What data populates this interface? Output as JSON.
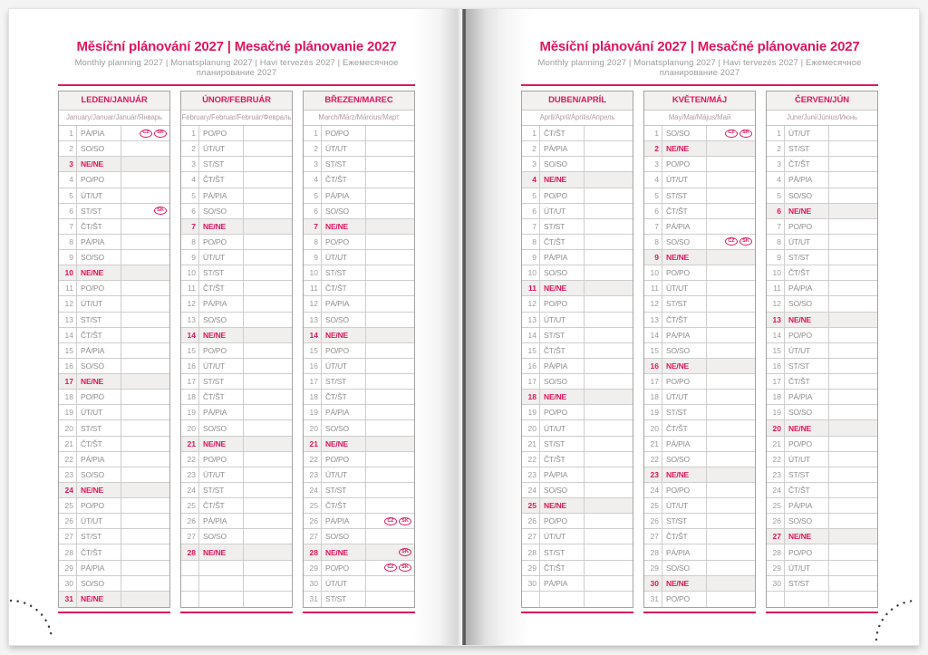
{
  "accent_color": "#df1760",
  "pages": [
    {
      "title": "Měsíční plánování 2027 | Mesačné plánovanie 2027",
      "subtitle": "Monthly planning 2027 | Monatsplanung 2027 | Havi tervezés 2027 | Ежемесячное планирование 2027",
      "months": [
        {
          "name": "LEDEN/JANUÁR",
          "subtitle": "January/Januar/Január/Январь",
          "empty_rows": 0,
          "days": [
            [
              1,
              "PÁ/PIA",
              [
                "CZ",
                "SK"
              ]
            ],
            [
              2,
              "SO/SO"
            ],
            [
              3,
              "NE/NE"
            ],
            [
              4,
              "PO/PO"
            ],
            [
              5,
              "ÚT/UT"
            ],
            [
              6,
              "ST/ST",
              [
                "SK"
              ]
            ],
            [
              7,
              "ČT/ŠT"
            ],
            [
              8,
              "PÁ/PIA"
            ],
            [
              9,
              "SO/SO"
            ],
            [
              10,
              "NE/NE"
            ],
            [
              11,
              "PO/PO"
            ],
            [
              12,
              "ÚT/UT"
            ],
            [
              13,
              "ST/ST"
            ],
            [
              14,
              "ČT/ŠT"
            ],
            [
              15,
              "PÁ/PIA"
            ],
            [
              16,
              "SO/SO"
            ],
            [
              17,
              "NE/NE"
            ],
            [
              18,
              "PO/PO"
            ],
            [
              19,
              "ÚT/UT"
            ],
            [
              20,
              "ST/ST"
            ],
            [
              21,
              "ČT/ŠT"
            ],
            [
              22,
              "PÁ/PIA"
            ],
            [
              23,
              "SO/SO"
            ],
            [
              24,
              "NE/NE"
            ],
            [
              25,
              "PO/PO"
            ],
            [
              26,
              "ÚT/UT"
            ],
            [
              27,
              "ST/ST"
            ],
            [
              28,
              "ČT/ŠT"
            ],
            [
              29,
              "PÁ/PIA"
            ],
            [
              30,
              "SO/SO"
            ],
            [
              31,
              "NE/NE"
            ]
          ]
        },
        {
          "name": "ÚNOR/FEBRUÁR",
          "subtitle": "February/Februar/Február/Февраль",
          "empty_rows": 3,
          "days": [
            [
              1,
              "PO/PO"
            ],
            [
              2,
              "ÚT/UT"
            ],
            [
              3,
              "ST/ST"
            ],
            [
              4,
              "ČT/ŠT"
            ],
            [
              5,
              "PÁ/PIA"
            ],
            [
              6,
              "SO/SO"
            ],
            [
              7,
              "NE/NE"
            ],
            [
              8,
              "PO/PO"
            ],
            [
              9,
              "ÚT/UT"
            ],
            [
              10,
              "ST/ST"
            ],
            [
              11,
              "ČT/ŠT"
            ],
            [
              12,
              "PÁ/PIA"
            ],
            [
              13,
              "SO/SO"
            ],
            [
              14,
              "NE/NE"
            ],
            [
              15,
              "PO/PO"
            ],
            [
              16,
              "ÚT/UT"
            ],
            [
              17,
              "ST/ST"
            ],
            [
              18,
              "ČT/ŠT"
            ],
            [
              19,
              "PÁ/PIA"
            ],
            [
              20,
              "SO/SO"
            ],
            [
              21,
              "NE/NE"
            ],
            [
              22,
              "PO/PO"
            ],
            [
              23,
              "ÚT/UT"
            ],
            [
              24,
              "ST/ST"
            ],
            [
              25,
              "ČT/ŠT"
            ],
            [
              26,
              "PÁ/PIA"
            ],
            [
              27,
              "SO/SO"
            ],
            [
              28,
              "NE/NE"
            ]
          ]
        },
        {
          "name": "BŘEZEN/MAREC",
          "subtitle": "March/März/Március/Март",
          "empty_rows": 0,
          "days": [
            [
              1,
              "PO/PO"
            ],
            [
              2,
              "ÚT/UT"
            ],
            [
              3,
              "ST/ST"
            ],
            [
              4,
              "ČT/ŠT"
            ],
            [
              5,
              "PÁ/PIA"
            ],
            [
              6,
              "SO/SO"
            ],
            [
              7,
              "NE/NE"
            ],
            [
              8,
              "PO/PO"
            ],
            [
              9,
              "ÚT/UT"
            ],
            [
              10,
              "ST/ST"
            ],
            [
              11,
              "ČT/ŠT"
            ],
            [
              12,
              "PÁ/PIA"
            ],
            [
              13,
              "SO/SO"
            ],
            [
              14,
              "NE/NE"
            ],
            [
              15,
              "PO/PO"
            ],
            [
              16,
              "ÚT/UT"
            ],
            [
              17,
              "ST/ST"
            ],
            [
              18,
              "ČT/ŠT"
            ],
            [
              19,
              "PÁ/PIA"
            ],
            [
              20,
              "SO/SO"
            ],
            [
              21,
              "NE/NE"
            ],
            [
              22,
              "PO/PO"
            ],
            [
              23,
              "ÚT/UT"
            ],
            [
              24,
              "ST/ST"
            ],
            [
              25,
              "ČT/ŠT"
            ],
            [
              26,
              "PÁ/PIA",
              [
                "CZ",
                "SK"
              ]
            ],
            [
              27,
              "SO/SO"
            ],
            [
              28,
              "NE/NE",
              [
                "SK"
              ]
            ],
            [
              29,
              "PO/PO",
              [
                "CZ",
                "SK"
              ]
            ],
            [
              30,
              "ÚT/UT"
            ],
            [
              31,
              "ST/ST"
            ]
          ]
        }
      ]
    },
    {
      "title": "Měsíční plánování 2027 | Mesačné plánovanie 2027",
      "subtitle": "Monthly planning 2027 | Monatsplanung 2027 | Havi tervezés 2027 | Ежемесячное планирование 2027",
      "months": [
        {
          "name": "DUBEN/APRÍL",
          "subtitle": "April/April/Április/Апрель",
          "empty_rows": 1,
          "days": [
            [
              1,
              "ČT/ŠT"
            ],
            [
              2,
              "PÁ/PIA"
            ],
            [
              3,
              "SO/SO"
            ],
            [
              4,
              "NE/NE"
            ],
            [
              5,
              "PO/PO"
            ],
            [
              6,
              "ÚT/UT"
            ],
            [
              7,
              "ST/ST"
            ],
            [
              8,
              "ČT/ŠT"
            ],
            [
              9,
              "PÁ/PIA"
            ],
            [
              10,
              "SO/SO"
            ],
            [
              11,
              "NE/NE"
            ],
            [
              12,
              "PO/PO"
            ],
            [
              13,
              "ÚT/UT"
            ],
            [
              14,
              "ST/ST"
            ],
            [
              15,
              "ČT/ŠT"
            ],
            [
              16,
              "PÁ/PIA"
            ],
            [
              17,
              "SO/SO"
            ],
            [
              18,
              "NE/NE"
            ],
            [
              19,
              "PO/PO"
            ],
            [
              20,
              "ÚT/UT"
            ],
            [
              21,
              "ST/ST"
            ],
            [
              22,
              "ČT/ŠT"
            ],
            [
              23,
              "PÁ/PIA"
            ],
            [
              24,
              "SO/SO"
            ],
            [
              25,
              "NE/NE"
            ],
            [
              26,
              "PO/PO"
            ],
            [
              27,
              "ÚT/UT"
            ],
            [
              28,
              "ST/ST"
            ],
            [
              29,
              "ČT/ŠT"
            ],
            [
              30,
              "PÁ/PIA"
            ]
          ]
        },
        {
          "name": "KVĚTEN/MÁJ",
          "subtitle": "May/Mai/Május/Май",
          "empty_rows": 0,
          "days": [
            [
              1,
              "SO/SO",
              [
                "CZ",
                "SK"
              ]
            ],
            [
              2,
              "NE/NE"
            ],
            [
              3,
              "PO/PO"
            ],
            [
              4,
              "ÚT/UT"
            ],
            [
              5,
              "ST/ST"
            ],
            [
              6,
              "ČT/ŠT"
            ],
            [
              7,
              "PÁ/PIA"
            ],
            [
              8,
              "SO/SO",
              [
                "CZ",
                "SK"
              ]
            ],
            [
              9,
              "NE/NE"
            ],
            [
              10,
              "PO/PO"
            ],
            [
              11,
              "ÚT/UT"
            ],
            [
              12,
              "ST/ST"
            ],
            [
              13,
              "ČT/ŠT"
            ],
            [
              14,
              "PÁ/PIA"
            ],
            [
              15,
              "SO/SO"
            ],
            [
              16,
              "NE/NE"
            ],
            [
              17,
              "PO/PO"
            ],
            [
              18,
              "ÚT/UT"
            ],
            [
              19,
              "ST/ST"
            ],
            [
              20,
              "ČT/ŠT"
            ],
            [
              21,
              "PÁ/PIA"
            ],
            [
              22,
              "SO/SO"
            ],
            [
              23,
              "NE/NE"
            ],
            [
              24,
              "PO/PO"
            ],
            [
              25,
              "ÚT/UT"
            ],
            [
              26,
              "ST/ST"
            ],
            [
              27,
              "ČT/ŠT"
            ],
            [
              28,
              "PÁ/PIA"
            ],
            [
              29,
              "SO/SO"
            ],
            [
              30,
              "NE/NE"
            ],
            [
              31,
              "PO/PO"
            ]
          ]
        },
        {
          "name": "ČERVEN/JÚN",
          "subtitle": "June/Juni/Június/Июнь",
          "empty_rows": 1,
          "days": [
            [
              1,
              "ÚT/UT"
            ],
            [
              2,
              "ST/ST"
            ],
            [
              3,
              "ČT/ŠT"
            ],
            [
              4,
              "PÁ/PIA"
            ],
            [
              5,
              "SO/SO"
            ],
            [
              6,
              "NE/NE"
            ],
            [
              7,
              "PO/PO"
            ],
            [
              8,
              "ÚT/UT"
            ],
            [
              9,
              "ST/ST"
            ],
            [
              10,
              "ČT/ŠT"
            ],
            [
              11,
              "PÁ/PIA"
            ],
            [
              12,
              "SO/SO"
            ],
            [
              13,
              "NE/NE"
            ],
            [
              14,
              "PO/PO"
            ],
            [
              15,
              "ÚT/UT"
            ],
            [
              16,
              "ST/ST"
            ],
            [
              17,
              "ČT/ŠT"
            ],
            [
              18,
              "PÁ/PIA"
            ],
            [
              19,
              "SO/SO"
            ],
            [
              20,
              "NE/NE"
            ],
            [
              21,
              "PO/PO"
            ],
            [
              22,
              "ÚT/UT"
            ],
            [
              23,
              "ST/ST"
            ],
            [
              24,
              "ČT/ŠT"
            ],
            [
              25,
              "PÁ/PIA"
            ],
            [
              26,
              "SO/SO"
            ],
            [
              27,
              "NE/NE"
            ],
            [
              28,
              "PO/PO"
            ],
            [
              29,
              "ÚT/UT"
            ],
            [
              30,
              "ST/ST"
            ]
          ]
        }
      ]
    }
  ],
  "legend": {
    "sunday_abbrev": "NE/NE",
    "badge_cz": "CZ",
    "badge_sk": "SK"
  }
}
